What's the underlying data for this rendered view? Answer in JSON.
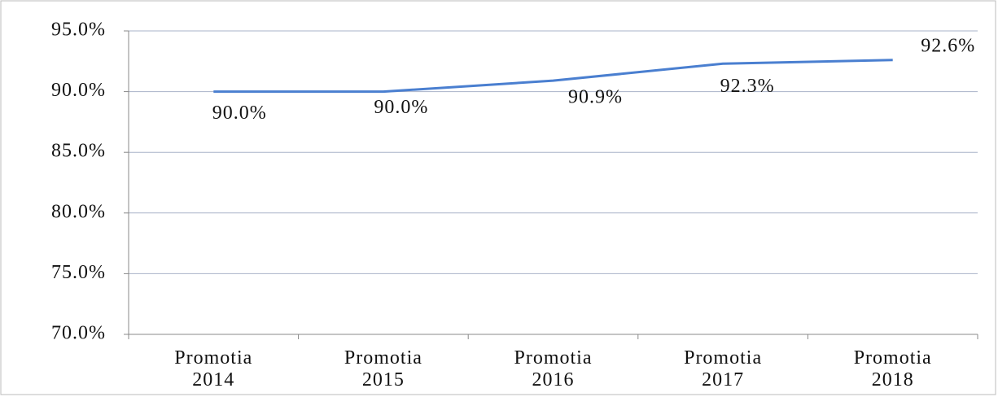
{
  "chart_data": {
    "type": "line",
    "categories": [
      "Promotia 2014",
      "Promotia 2015",
      "Promotia 2016",
      "Promotia 2017",
      "Promotia 2018"
    ],
    "values": [
      90.0,
      90.0,
      90.9,
      92.3,
      92.6
    ],
    "value_labels": [
      "90.0%",
      "90.0%",
      "90.9%",
      "92.3%",
      "92.6%"
    ],
    "color": "#4a7fd0",
    "ylim": [
      70,
      95
    ],
    "yticks": [
      {
        "value": 70,
        "label": "70.0%"
      },
      {
        "value": 75,
        "label": "75.0%"
      },
      {
        "value": 80,
        "label": "80.0%"
      },
      {
        "value": 85,
        "label": "85.0%"
      },
      {
        "value": 90,
        "label": "90.0%"
      },
      {
        "value": 95,
        "label": "95.0%"
      }
    ],
    "grid": true
  }
}
